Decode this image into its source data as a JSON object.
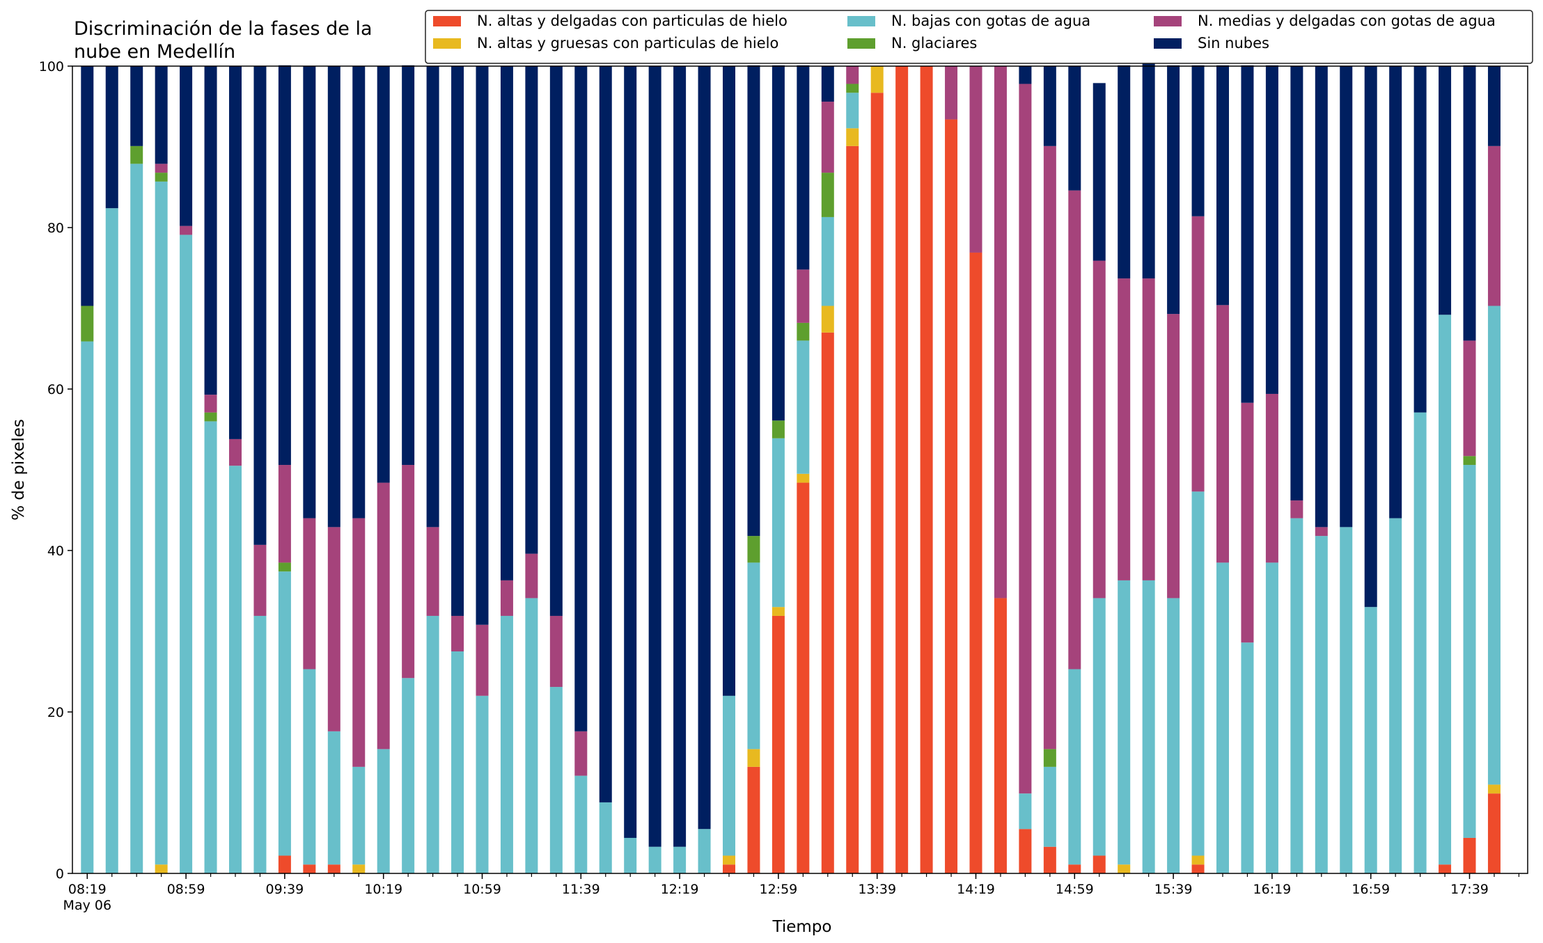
{
  "chart_data": {
    "type": "bar",
    "stacked": true,
    "title": "Discriminación de la fases de la nube en Medellín",
    "xlabel": "Tiempo",
    "ylabel": "% de pixeles",
    "ylim": [
      0,
      100
    ],
    "yticks": [
      0,
      20,
      40,
      60,
      80,
      100
    ],
    "xticks": [
      {
        "label": "08:19",
        "sublabel": "May 06",
        "index": 0
      },
      {
        "label": "08:59",
        "index": 4
      },
      {
        "label": "09:39",
        "index": 8
      },
      {
        "label": "10:19",
        "index": 12
      },
      {
        "label": "10:59",
        "index": 16
      },
      {
        "label": "11:39",
        "index": 20
      },
      {
        "label": "12:19",
        "index": 24
      },
      {
        "label": "12:59",
        "index": 28
      },
      {
        "label": "13:39",
        "index": 32
      },
      {
        "label": "14:19",
        "index": 36
      },
      {
        "label": "14:59",
        "index": 40
      },
      {
        "label": "15:39",
        "index": 44
      },
      {
        "label": "16:19",
        "index": 48
      },
      {
        "label": "16:59",
        "index": 52
      },
      {
        "label": "17:39",
        "index": 56
      }
    ],
    "grid": false,
    "legend_position": "top-right",
    "bar_count": 58,
    "interval_minutes": 10,
    "series": [
      {
        "name": "N. altas y delgadas con particulas de hielo",
        "color": "#EE4B2B",
        "values": [
          0,
          0,
          0,
          0,
          0,
          0,
          0,
          0,
          2.2,
          1.1,
          1.1,
          0,
          0,
          0,
          0,
          0,
          0,
          0,
          0,
          0,
          0,
          0,
          0,
          0,
          0,
          0,
          1.1,
          13.2,
          31.9,
          48.4,
          67.0,
          90.1,
          96.7,
          100,
          100,
          93.4,
          76.9,
          34.1,
          5.5,
          3.3,
          1.1,
          2.2,
          0,
          0,
          0,
          1.1,
          0,
          0,
          0,
          0,
          0,
          0,
          0,
          0,
          0,
          1.1,
          4.4,
          9.9
        ]
      },
      {
        "name": "N. altas y gruesas con particulas de hielo",
        "color": "#E8B920",
        "values": [
          0,
          0,
          0,
          1.1,
          0,
          0,
          0,
          0,
          0,
          0,
          0,
          1.1,
          0,
          0,
          0,
          0,
          0,
          0,
          0,
          0,
          0,
          0,
          0,
          0,
          0,
          0,
          1.1,
          2.2,
          1.1,
          1.1,
          3.3,
          2.2,
          3.3,
          0,
          0,
          0,
          0,
          0,
          0,
          0,
          0,
          0,
          1.1,
          0,
          0,
          1.1,
          0,
          0,
          0,
          0,
          0,
          0,
          0,
          0,
          0,
          0,
          0,
          1.1
        ]
      },
      {
        "name": "N. bajas con gotas de agua",
        "color": "#68BFCA",
        "values": [
          65.9,
          82.4,
          87.9,
          84.6,
          79.1,
          56.0,
          50.5,
          31.9,
          35.2,
          24.2,
          16.5,
          12.1,
          15.4,
          24.2,
          31.9,
          27.5,
          22.0,
          31.9,
          34.1,
          23.1,
          12.1,
          8.8,
          4.4,
          3.3,
          3.3,
          5.5,
          19.8,
          23.1,
          20.9,
          16.5,
          11.0,
          4.4,
          0,
          0,
          0,
          0,
          0,
          0,
          4.4,
          9.9,
          24.2,
          31.9,
          35.2,
          36.3,
          34.1,
          45.1,
          38.5,
          28.6,
          38.5,
          44.0,
          41.8,
          42.9,
          33.0,
          44.0,
          57.1,
          68.1,
          46.2,
          59.3
        ]
      },
      {
        "name": "N. glaciares",
        "color": "#5E9F2E",
        "values": [
          4.4,
          0,
          2.2,
          1.1,
          0,
          1.1,
          0,
          0,
          1.1,
          0,
          0,
          0,
          0,
          0,
          0,
          0,
          0,
          0,
          0,
          0,
          0,
          0,
          0,
          0,
          0,
          0,
          0,
          3.3,
          2.2,
          2.2,
          5.5,
          1.1,
          0,
          0,
          0,
          0,
          0,
          0,
          0,
          2.2,
          0,
          0,
          0,
          0,
          0,
          0,
          0,
          0,
          0,
          0,
          0,
          0,
          0,
          0,
          0,
          0,
          1.1,
          0
        ]
      },
      {
        "name": "N. medias y delgadas con gotas de agua",
        "color": "#A5437B",
        "values": [
          0,
          0,
          0,
          1.1,
          1.1,
          2.2,
          3.3,
          8.8,
          12.1,
          18.7,
          25.3,
          30.8,
          33.0,
          26.4,
          11.0,
          4.4,
          8.8,
          4.4,
          5.5,
          8.8,
          5.5,
          0,
          0,
          0,
          0,
          0,
          0,
          0,
          0,
          6.6,
          8.8,
          2.2,
          0,
          0,
          0,
          6.6,
          23.1,
          65.9,
          87.9,
          74.7,
          59.3,
          41.8,
          37.4,
          37.4,
          35.2,
          34.1,
          31.9,
          29.7,
          20.9,
          2.2,
          1.1,
          0,
          0,
          0,
          0,
          0,
          14.3,
          19.8
        ]
      },
      {
        "name": "Sin nubes",
        "color": "#001F60",
        "values": [
          29.7,
          17.6,
          9.9,
          12.1,
          19.8,
          40.7,
          46.2,
          59.3,
          49.5,
          56.0,
          57.1,
          56.0,
          51.6,
          49.5,
          57.1,
          68.1,
          69.2,
          63.7,
          60.4,
          68.1,
          82.4,
          91.2,
          95.6,
          96.7,
          96.7,
          94.5,
          78.0,
          58.3,
          44.0,
          25.3,
          4.4,
          0,
          0,
          0,
          0,
          0,
          0,
          0,
          2.2,
          9.9,
          15.4,
          22.0,
          26.4,
          29.7,
          30.8,
          18.7,
          29.7,
          41.8,
          40.7,
          53.8,
          57.1,
          57.1,
          67.0,
          56.0,
          42.9,
          30.8,
          34.1,
          9.9
        ]
      }
    ]
  }
}
